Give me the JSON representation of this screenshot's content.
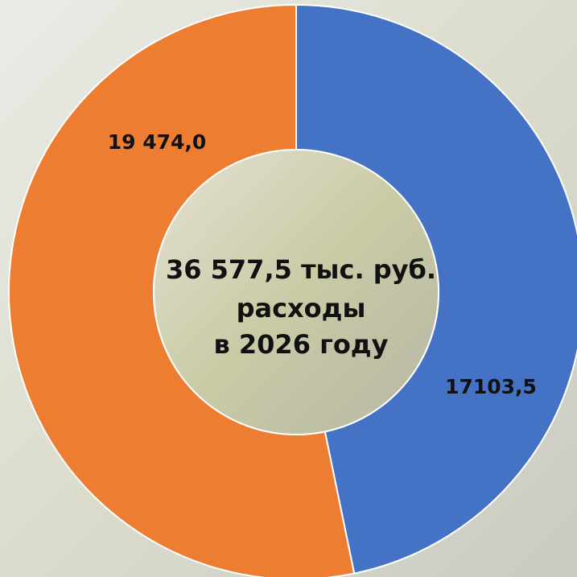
{
  "chart_data": {
    "type": "donut",
    "categories": [
      null,
      null
    ],
    "values": [
      17103.5,
      19474.0
    ],
    "value_labels": [
      "17103,5",
      "19 474,0"
    ],
    "colors": [
      "#4472c4",
      "#ed7d31"
    ],
    "center_text": [
      "36 577,5 тыс. руб.",
      "расходы",
      "в 2026 году"
    ]
  }
}
